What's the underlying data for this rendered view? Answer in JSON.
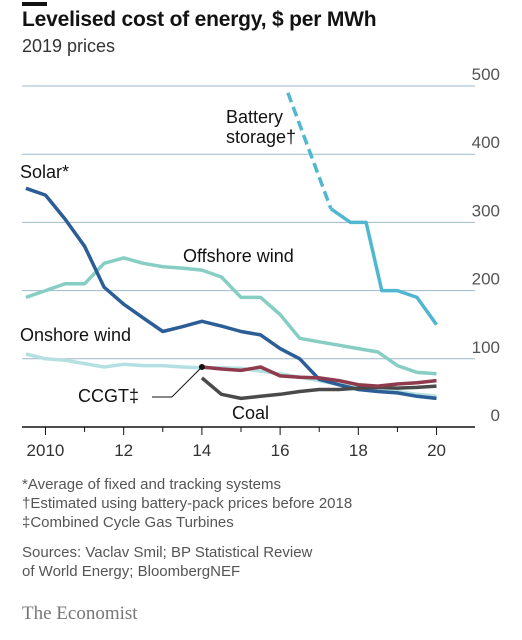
{
  "header": {
    "title": "Levelised cost of energy, $ per MWh",
    "subtitle": "2019 prices"
  },
  "footnotes": [
    "*Average of fixed and tracking systems",
    "†Estimated using battery-pack prices before 2018",
    "‡Combined Cycle Gas Turbines"
  ],
  "sources": [
    "Sources: Vaclav Smil; BP Statistical Review",
    "of World Energy; BloombergNEF"
  ],
  "brand": "The Economist",
  "chart_data": {
    "type": "line",
    "title": "Levelised cost of energy, $ per MWh",
    "subtitle": "2019 prices",
    "ylim": [
      0,
      500
    ],
    "y_ticks": [
      0,
      100,
      200,
      300,
      400,
      500
    ],
    "y_tick_labels": [
      "0",
      "100",
      "200",
      "300",
      "400",
      "500"
    ],
    "xlim": [
      2009.4,
      2020.6
    ],
    "x_ticks": [
      2010,
      2012,
      2014,
      2016,
      2018,
      2020
    ],
    "x_tick_labels": [
      "2010",
      "12",
      "14",
      "16",
      "18",
      "20"
    ],
    "grid": true,
    "colors": {
      "battery": "#4fb7cf",
      "solar": "#2b5e96",
      "offshore": "#86cdc4",
      "onshore": "#b5e0e1",
      "ccgt": "#8f3b4d",
      "coal": "#4a4a4a",
      "grid": "#9bb9cc",
      "axis": "#121212"
    },
    "series": [
      {
        "name": "Battery storage†",
        "key": "battery",
        "x": [
          2016.2,
          2017.3,
          2017.8,
          2018.2,
          2018.6,
          2019.0,
          2019.5,
          2020.0
        ],
        "y": [
          490,
          320,
          300,
          300,
          200,
          200,
          190,
          150
        ],
        "dashed_until": 2017.3
      },
      {
        "name": "Solar*",
        "key": "solar",
        "x": [
          2009.5,
          2010.0,
          2010.5,
          2011.0,
          2011.5,
          2012.0,
          2012.5,
          2013.0,
          2013.5,
          2014.0,
          2014.5,
          2015.0,
          2015.5,
          2016.0,
          2016.5,
          2017.0,
          2017.5,
          2018.0,
          2018.5,
          2019.0,
          2019.5,
          2020.0
        ],
        "y": [
          350,
          340,
          305,
          265,
          205,
          180,
          160,
          140,
          147,
          155,
          148,
          140,
          135,
          115,
          100,
          70,
          62,
          55,
          52,
          50,
          45,
          42
        ]
      },
      {
        "name": "Offshore wind",
        "key": "offshore",
        "x": [
          2009.5,
          2010.0,
          2010.5,
          2011.0,
          2011.5,
          2012.0,
          2012.5,
          2013.0,
          2013.5,
          2014.0,
          2014.5,
          2015.0,
          2015.5,
          2016.0,
          2016.5,
          2017.0,
          2017.5,
          2018.0,
          2018.5,
          2019.0,
          2019.5,
          2020.0
        ],
        "y": [
          190,
          200,
          210,
          210,
          240,
          248,
          240,
          235,
          233,
          230,
          220,
          190,
          190,
          165,
          130,
          125,
          120,
          115,
          110,
          90,
          80,
          78
        ]
      },
      {
        "name": "Onshore wind",
        "key": "onshore",
        "x": [
          2009.5,
          2010.0,
          2010.5,
          2011.0,
          2011.5,
          2012.0,
          2012.5,
          2013.0,
          2013.5,
          2014.0,
          2014.5,
          2015.0,
          2015.5,
          2016.0,
          2016.5,
          2017.0,
          2017.5,
          2018.0,
          2018.5,
          2019.0,
          2019.5,
          2020.0
        ],
        "y": [
          107,
          100,
          98,
          93,
          88,
          92,
          90,
          90,
          88,
          87,
          87,
          86,
          82,
          78,
          73,
          68,
          62,
          58,
          55,
          52,
          48,
          45
        ]
      },
      {
        "name": "CCGT‡",
        "key": "ccgt",
        "x": [
          2014.0,
          2014.5,
          2015.0,
          2015.5,
          2016.0,
          2016.5,
          2017.0,
          2017.5,
          2018.0,
          2018.5,
          2019.0,
          2019.5,
          2020.0
        ],
        "y": [
          88,
          85,
          83,
          88,
          75,
          73,
          72,
          68,
          62,
          60,
          63,
          65,
          68
        ]
      },
      {
        "name": "Coal",
        "key": "coal",
        "x": [
          2014.0,
          2014.5,
          2015.0,
          2015.5,
          2016.0,
          2016.5,
          2017.0,
          2017.5,
          2018.0,
          2018.5,
          2019.0,
          2019.5,
          2020.0
        ],
        "y": [
          72,
          48,
          42,
          45,
          48,
          52,
          55,
          55,
          57,
          58,
          57,
          58,
          60
        ]
      }
    ],
    "annotations": [
      {
        "key": "battery",
        "lines": [
          "Battery",
          "storage†"
        ]
      },
      {
        "key": "solar",
        "lines": [
          "Solar*"
        ]
      },
      {
        "key": "offshore",
        "lines": [
          "Offshore wind"
        ]
      },
      {
        "key": "onshore",
        "lines": [
          "Onshore wind"
        ]
      },
      {
        "key": "ccgt",
        "lines": [
          "CCGT‡"
        ]
      },
      {
        "key": "coal",
        "lines": [
          "Coal"
        ]
      }
    ]
  }
}
